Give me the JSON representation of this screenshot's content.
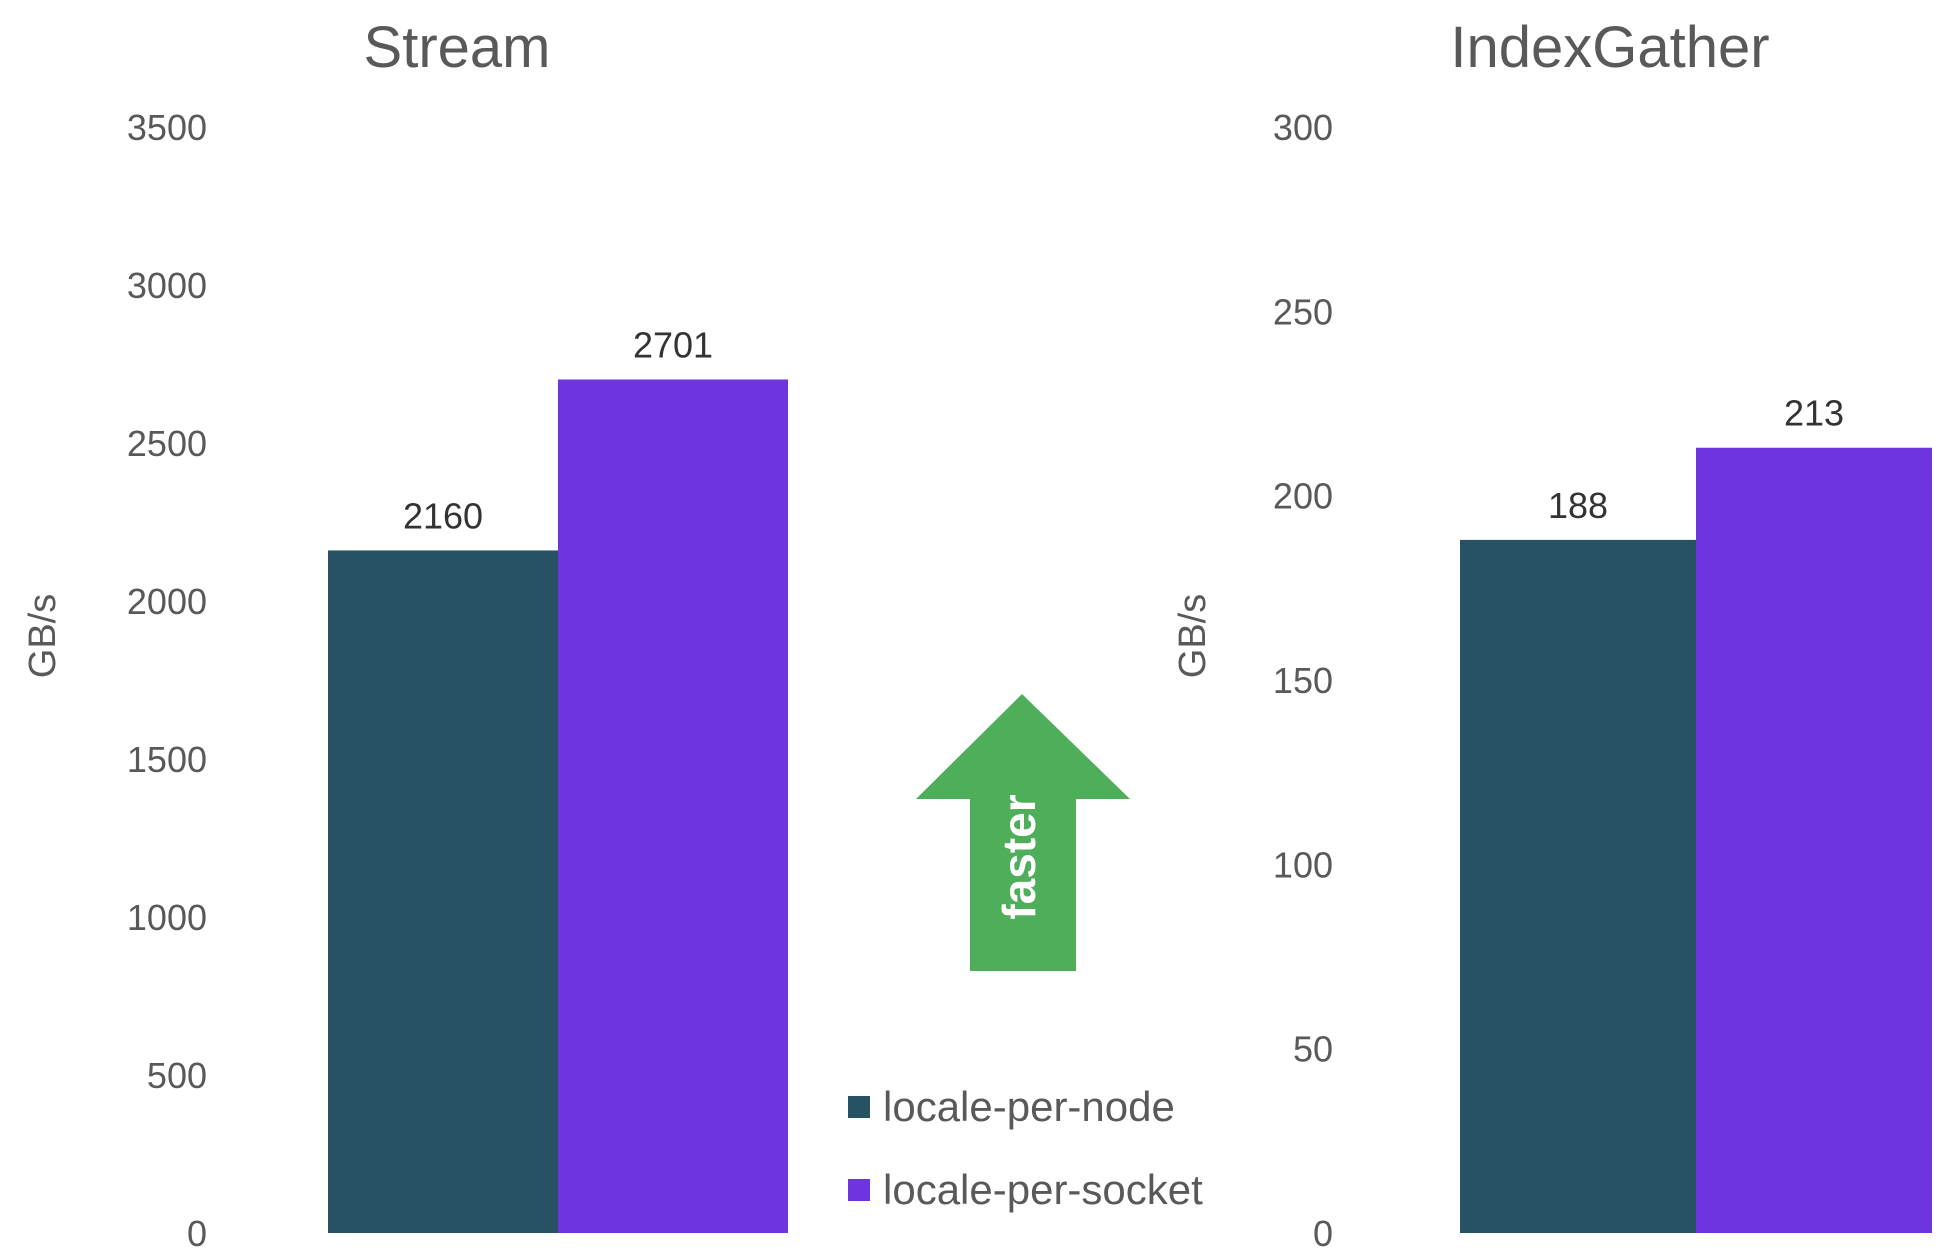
{
  "colors": {
    "locale_per_node": "#265263",
    "locale_per_socket": "#6e34e0",
    "arrow": "#4fae5a",
    "text": "#595959"
  },
  "legend": {
    "items": [
      {
        "label": "locale-per-node",
        "color": "#265263"
      },
      {
        "label": "locale-per-socket",
        "color": "#6e34e0"
      }
    ]
  },
  "arrow": {
    "label": "faster",
    "direction": "up"
  },
  "chart_data": [
    {
      "type": "bar",
      "title": "Stream",
      "ylabel": "GB/s",
      "xlabel": "",
      "ylim": [
        0,
        3500
      ],
      "yticks": [
        0,
        500,
        1000,
        1500,
        2000,
        2500,
        3000,
        3500
      ],
      "series": [
        {
          "name": "locale-per-node",
          "values": [
            2160
          ],
          "labels": [
            "2160"
          ]
        },
        {
          "name": "locale-per-socket",
          "values": [
            2701
          ],
          "labels": [
            "2701"
          ]
        }
      ]
    },
    {
      "type": "bar",
      "title": "IndexGather",
      "ylabel": "GB/s",
      "xlabel": "",
      "ylim": [
        0,
        300
      ],
      "yticks": [
        0,
        50,
        100,
        150,
        200,
        250,
        300
      ],
      "series": [
        {
          "name": "locale-per-node",
          "values": [
            188
          ],
          "labels": [
            "188"
          ]
        },
        {
          "name": "locale-per-socket",
          "values": [
            213
          ],
          "labels": [
            "213"
          ]
        }
      ]
    }
  ]
}
